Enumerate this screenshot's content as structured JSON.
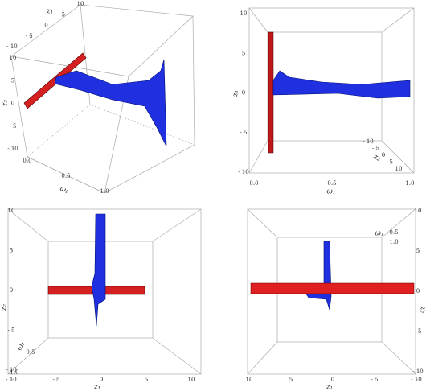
{
  "chart_data": [
    {
      "type": "surface3d",
      "axes": [
        {
          "label": "z₁",
          "lim": [
            -10,
            10
          ],
          "ticks": [
            {
              "value": -10,
              "label": "- 10"
            },
            {
              "value": -5,
              "label": "- 5"
            },
            0,
            5,
            10
          ]
        },
        {
          "label": "z₂",
          "lim": [
            -10,
            10
          ],
          "ticks": [
            {
              "value": -10,
              "label": "- 10"
            },
            {
              "value": -5,
              "label": "- 5"
            },
            0,
            5,
            10
          ]
        },
        {
          "label": "ω₁",
          "lim": [
            0,
            1
          ],
          "ticks": [
            {
              "value": 0,
              "label": "0.0"
            },
            0.5,
            {
              "value": 1,
              "label": "1.0"
            }
          ]
        }
      ]
    },
    {
      "type": "surface3d",
      "axes": [
        {
          "label": "z₁",
          "lim": [
            -10,
            10
          ],
          "ticks": [
            {
              "value": -10,
              "label": "- 10"
            },
            {
              "value": -5,
              "label": "- 5"
            },
            0,
            5,
            10
          ]
        },
        {
          "label": "ω₁",
          "lim": [
            0,
            1
          ],
          "ticks": [
            {
              "value": 0,
              "label": "0.0"
            },
            0.5,
            {
              "value": 1,
              "label": "1.0"
            }
          ]
        },
        {
          "label": "z₂",
          "lim": [
            -10,
            10
          ],
          "ticks": [
            {
              "value": -10,
              "label": "- 10"
            },
            {
              "value": -5,
              "label": "- 5"
            },
            0,
            5,
            10
          ]
        }
      ]
    },
    {
      "type": "surface3d",
      "axes": [
        {
          "label": "z₂",
          "lim": [
            -10,
            10
          ],
          "ticks": [
            {
              "value": -10,
              "label": "- 10"
            },
            {
              "value": -5,
              "label": "- 5"
            },
            0,
            5,
            10
          ]
        },
        {
          "label": "z₁",
          "lim": [
            -10,
            10
          ],
          "ticks": [
            {
              "value": -10,
              "label": "- 10"
            },
            {
              "value": -5,
              "label": "- 5"
            },
            0,
            5,
            10
          ]
        },
        {
          "label": "ω₁",
          "lim": [
            0,
            1
          ],
          "ticks": [
            0.5,
            {
              "value": 1,
              "label": "1.0"
            }
          ]
        }
      ]
    },
    {
      "type": "surface3d",
      "axes": [
        {
          "label": "z₂",
          "lim": [
            -10,
            10
          ],
          "ticks": [
            {
              "value": -10,
              "label": "- 10"
            },
            {
              "value": -5,
              "label": "- 5"
            },
            0,
            5,
            10
          ]
        },
        {
          "label": "z₁",
          "lim": [
            -10,
            10
          ],
          "ticks": [
            {
              "value": -10,
              "label": "- 10"
            },
            {
              "value": -5,
              "label": "- 5"
            },
            0,
            5,
            10
          ]
        },
        {
          "label": "ω₁",
          "lim": [
            0,
            1
          ],
          "ticks": [
            0.5,
            {
              "value": 1,
              "label": "1.0"
            }
          ]
        }
      ]
    }
  ]
}
